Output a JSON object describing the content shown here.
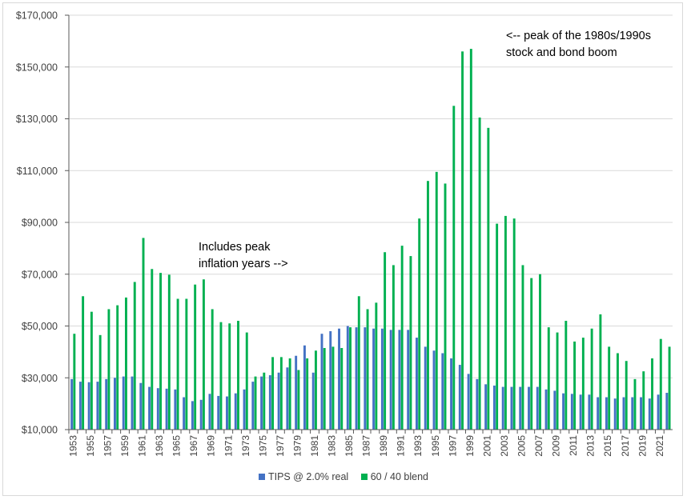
{
  "chart_data": {
    "type": "bar",
    "title": "",
    "xlabel": "",
    "ylabel": "",
    "ylim": [
      10000,
      170000
    ],
    "ytick_labels": [
      "$10,000",
      "$30,000",
      "$50,000",
      "$70,000",
      "$90,000",
      "$110,000",
      "$130,000",
      "$150,000",
      "$170,000"
    ],
    "categories": [
      1953,
      1954,
      1955,
      1956,
      1957,
      1958,
      1959,
      1960,
      1961,
      1962,
      1963,
      1964,
      1965,
      1966,
      1967,
      1968,
      1969,
      1970,
      1971,
      1972,
      1973,
      1974,
      1975,
      1976,
      1977,
      1978,
      1979,
      1980,
      1981,
      1982,
      1983,
      1984,
      1985,
      1986,
      1987,
      1988,
      1989,
      1990,
      1991,
      1992,
      1993,
      1994,
      1995,
      1996,
      1997,
      1998,
      1999,
      2000,
      2001,
      2002,
      2003,
      2004,
      2005,
      2006,
      2007,
      2008,
      2009,
      2010,
      2011,
      2012,
      2013,
      2014,
      2015,
      2016,
      2017,
      2018,
      2019,
      2020,
      2021,
      2022
    ],
    "xtick_labels": [
      "1953",
      "1955",
      "1957",
      "1959",
      "1961",
      "1963",
      "1965",
      "1967",
      "1969",
      "1971",
      "1973",
      "1975",
      "1977",
      "1979",
      "1981",
      "1983",
      "1985",
      "1987",
      "1989",
      "1991",
      "1993",
      "1995",
      "1997",
      "1999",
      "2001",
      "2003",
      "2005",
      "2007",
      "2009",
      "2011",
      "2013",
      "2015",
      "2017",
      "2019",
      "2021"
    ],
    "series": [
      {
        "name": "TIPS @ 2.0% real",
        "color": "#4472c4",
        "values": [
          29500,
          28500,
          28300,
          28500,
          29500,
          30000,
          30500,
          30500,
          28000,
          26500,
          26000,
          25800,
          25500,
          22500,
          21000,
          21500,
          23800,
          23000,
          22800,
          24000,
          25500,
          28500,
          30500,
          31000,
          32000,
          34000,
          38500,
          42500,
          32000,
          47000,
          48000,
          49000,
          50000,
          49500,
          49500,
          49000,
          49000,
          48500,
          48500,
          48500,
          45500,
          42000,
          40500,
          39500,
          37500,
          35000,
          31500,
          29500,
          27500,
          27000,
          26500,
          26500,
          26500,
          26500,
          26500,
          25500,
          25000,
          24000,
          23800,
          23500,
          23500,
          22500,
          22500,
          22000,
          22500,
          22500,
          22500,
          22000,
          23500,
          24200
        ]
      },
      {
        "name": "60 / 40 blend",
        "color": "#00b050",
        "values": [
          47000,
          61500,
          55500,
          46500,
          56500,
          58000,
          61000,
          67000,
          84000,
          72000,
          70500,
          69800,
          60500,
          60500,
          66000,
          68000,
          56500,
          51500,
          51000,
          52000,
          47500,
          30500,
          32000,
          38000,
          38000,
          37500,
          33000,
          37500,
          40500,
          41500,
          42000,
          41500,
          49500,
          61500,
          56500,
          59000,
          78500,
          73500,
          81000,
          77000,
          91500,
          106000,
          109500,
          105000,
          135000,
          156000,
          157000,
          130500,
          126500,
          89500,
          92500,
          91500,
          73500,
          68500,
          70000,
          49500,
          47500,
          52000,
          44000,
          45500,
          49000,
          54500,
          42000,
          39500,
          36500,
          29500,
          32500,
          37500,
          45000,
          42000
        ]
      }
    ],
    "legend_position": "bottom",
    "annotations": [
      {
        "id": "peak-inflation",
        "text": "Includes peak\ninflation years -->"
      },
      {
        "id": "peak-boom",
        "text": "<-- peak of the 1980s/1990s\nstock and bond boom"
      }
    ]
  },
  "legend": {
    "tips_label": "TIPS @ 2.0% real",
    "blend_label": "60 / 40 blend"
  },
  "annotations": {
    "inflation": "Includes peak\ninflation years -->",
    "boom": "<-- peak of the 1980s/1990s\nstock and bond boom"
  }
}
